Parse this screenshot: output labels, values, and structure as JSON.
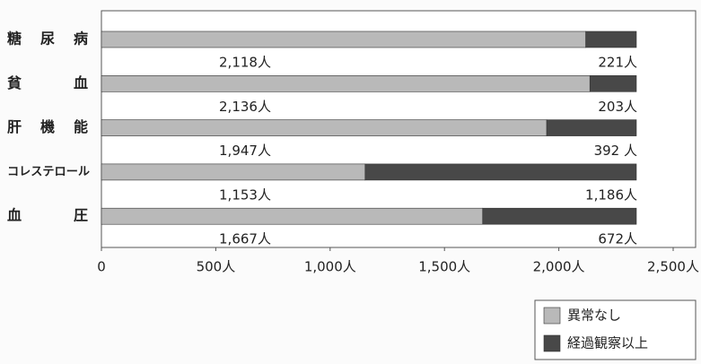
{
  "chart_data": {
    "type": "stacked-barh",
    "categories": [
      "糖尿病",
      "貧血",
      "肝機能",
      "コレステロール",
      "血圧"
    ],
    "series": [
      {
        "name": "異常なし",
        "color": "#b9b9b9",
        "values": [
          2118,
          2136,
          1947,
          1153,
          1667
        ],
        "value_labels": [
          "2,118人",
          "2,136人",
          "1,947人",
          "1,153人",
          "1,667人"
        ]
      },
      {
        "name": "経過観察以上",
        "color": "#484848",
        "values": [
          221,
          203,
          392,
          1186,
          672
        ],
        "value_labels": [
          "221人",
          "203人",
          "392 人",
          "1,186人",
          "672人"
        ]
      }
    ],
    "xlim": [
      0,
      2500
    ],
    "xticks": [
      0,
      {
        "value": 500,
        "label": "500人"
      },
      {
        "value": 1000,
        "label": "1,000人"
      },
      {
        "value": 1500,
        "label": "1,500人"
      },
      {
        "value": 2000,
        "label": "2,000人"
      },
      {
        "value": 2500,
        "label": "2,500人"
      }
    ],
    "legend": "bottom-right"
  }
}
